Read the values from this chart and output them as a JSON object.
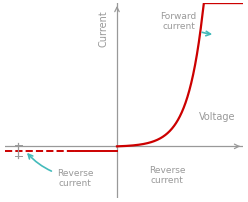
{
  "background_color": "#ffffff",
  "axis_color": "#999999",
  "curve_color": "#cc0000",
  "annotation_color": "#44bbbb",
  "text_color": "#999999",
  "ylabel": "Current",
  "xlabel": "Voltage",
  "forward_label": "Forward\ncurrent",
  "reverse_label_left": "Reverse\ncurrent",
  "reverse_label_right": "Reverse\ncurrent",
  "xlim": [
    -4.0,
    4.5
  ],
  "ylim": [
    -1.8,
    5.0
  ],
  "reverse_current_level": -0.15,
  "Vt": 0.55,
  "I0": 0.018,
  "x_thresh": 0.0
}
